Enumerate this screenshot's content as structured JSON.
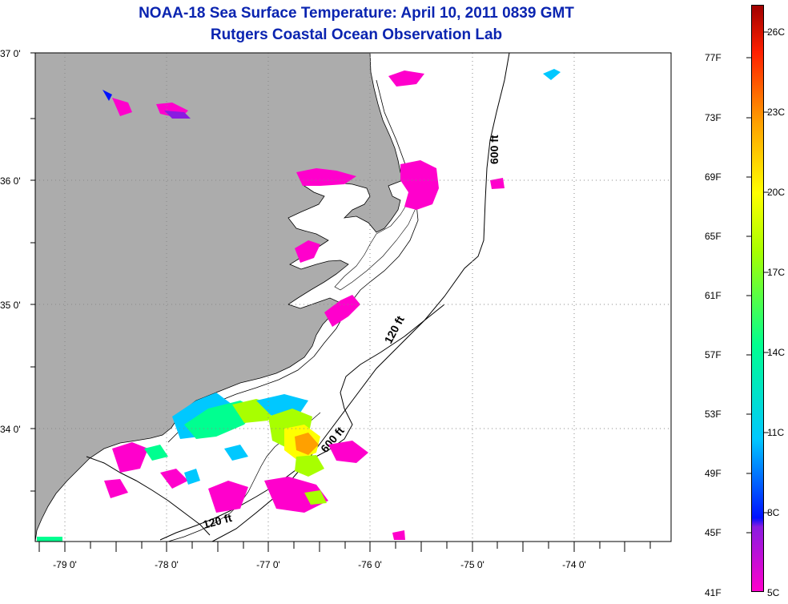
{
  "title": "NOAA-18 Sea Surface Temperature:  April 10, 2011 0839 GMT",
  "subtitle": "Rutgers Coastal Ocean Observation Lab",
  "lat_labels": [
    "37 0'",
    "36 0'",
    "35 0'",
    "34 0'"
  ],
  "lon_labels": [
    "-79 0'",
    "-78 0'",
    "-77 0'",
    "-76 0'",
    "-75 0'",
    "-74 0'"
  ],
  "isobaths": {
    "shallow": "120 ft",
    "deep": "600 ft"
  },
  "isobath_labels": [
    "600 ft",
    "120 ft",
    "600 ft",
    "120 ft"
  ],
  "colorbar": {
    "fahrenheit": [
      "77F",
      "73F",
      "69F",
      "65F",
      "61F",
      "57F",
      "53F",
      "49F",
      "45F",
      "41F"
    ],
    "celsius": [
      "26C",
      "23C",
      "20C",
      "17C",
      "14C",
      "11C",
      "8C",
      "5C"
    ],
    "colors": [
      "#ff00cc",
      "#8a1ce0",
      "#0010ff",
      "#00c8ff",
      "#00ff90",
      "#a8ff00",
      "#ffff00",
      "#ffa000",
      "#ff2000",
      "#a00000"
    ]
  },
  "colors": {
    "land": "#acacac",
    "title": "#0a24b0",
    "ocean": "#ffffff"
  }
}
